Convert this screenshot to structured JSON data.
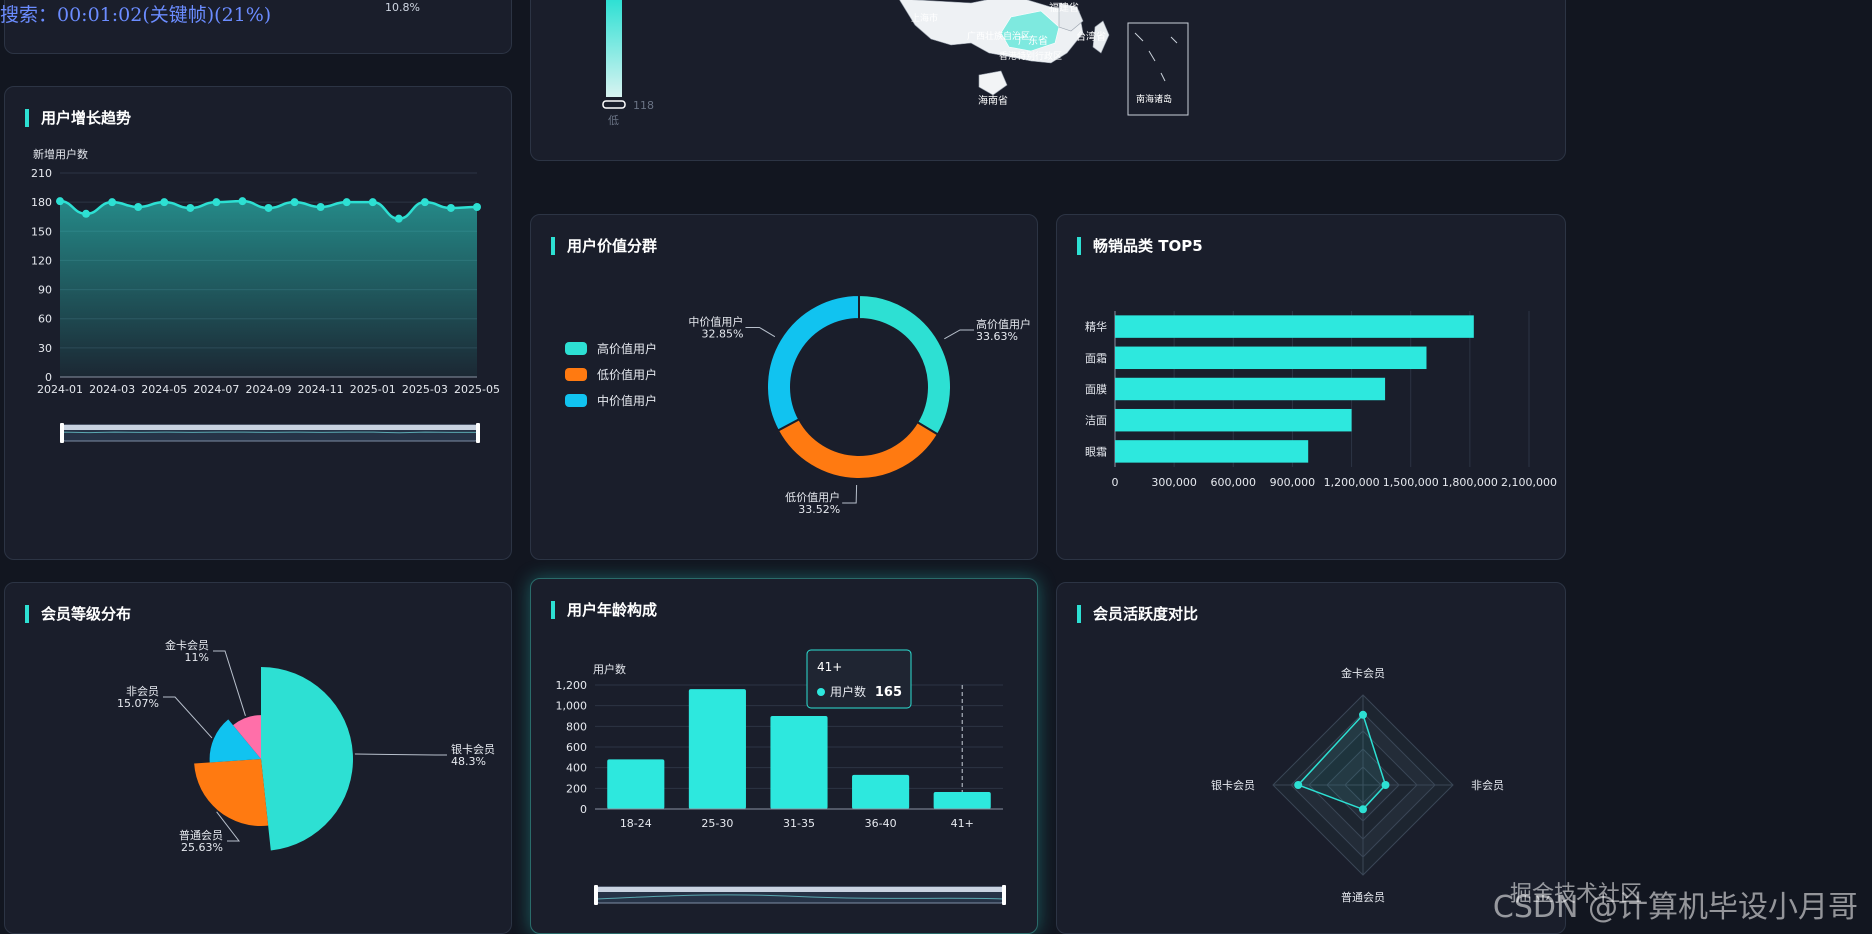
{
  "overlay": {
    "search_text": "搜索：00:01:02(关键帧)(21%)",
    "watermark": "CSDN @计算机毕设小月哥",
    "watermark_overlay": "掘金技术社区"
  },
  "top_left": {
    "fragment_value": "10.8%"
  },
  "map_panel": {
    "visual_min_label": "低",
    "visual_max_value": "118",
    "labels": [
      "福建省",
      "广东省",
      "台湾省",
      "海南省",
      "南海诸岛",
      "广西壮族自治区",
      "香港特别行政区",
      "上海市"
    ]
  },
  "growth": {
    "title": "用户增长趋势",
    "chart_data": {
      "type": "line",
      "ylabel": "新增用户数",
      "x": [
        "2024-01",
        "2024-02",
        "2024-03",
        "2024-04",
        "2024-05",
        "2024-06",
        "2024-07",
        "2024-08",
        "2024-09",
        "2024-10",
        "2024-11",
        "2024-12",
        "2025-01",
        "2025-02",
        "2025-03",
        "2025-04",
        "2025-05"
      ],
      "x_tick_labels": [
        "2024-01",
        "2024-03",
        "2024-05",
        "2024-07",
        "2024-09",
        "2024-11",
        "2025-01",
        "2025-03",
        "2025-05"
      ],
      "values": [
        181,
        168,
        180,
        175,
        180,
        174,
        180,
        181,
        174,
        180,
        175,
        180,
        180,
        163,
        180,
        174,
        175
      ],
      "ylim": [
        0,
        210
      ],
      "yticks": [
        0,
        30,
        60,
        90,
        120,
        150,
        180,
        210
      ],
      "color": "#2de0d3"
    }
  },
  "value_segment": {
    "title": "用户价值分群",
    "chart_data": {
      "type": "pie",
      "slices": [
        {
          "name": "高价值用户",
          "pct": "33.63%",
          "value": 33.63,
          "color": "#2de0d3"
        },
        {
          "name": "低价值用户",
          "pct": "33.52%",
          "value": 33.52,
          "color": "#ff7a11"
        },
        {
          "name": "中价值用户",
          "pct": "32.85%",
          "value": 32.85,
          "color": "#11c3f0"
        }
      ]
    }
  },
  "top5": {
    "title": "畅销品类 TOP5",
    "chart_data": {
      "type": "bar",
      "orientation": "horizontal",
      "categories": [
        "精华",
        "面霜",
        "面膜",
        "洁面",
        "眼霜"
      ],
      "values": [
        1820000,
        1580000,
        1370000,
        1200000,
        980000
      ],
      "xlim": [
        0,
        2100000
      ],
      "xticks": [
        "0",
        "300,000",
        "600,000",
        "900,000",
        "1,200,000",
        "1,500,000",
        "1,800,000",
        "2,100,000"
      ],
      "color": "#2de8de"
    }
  },
  "member_level": {
    "title": "会员等级分布",
    "chart_data": {
      "type": "pie",
      "roseType": "radius",
      "slices": [
        {
          "name": "银卡会员",
          "pct": "48.3%",
          "value": 48.3,
          "color": "#2de0d3"
        },
        {
          "name": "普通会员",
          "pct": "25.63%",
          "value": 25.63,
          "color": "#ff7a11"
        },
        {
          "name": "非会员",
          "pct": "15.07%",
          "value": 15.07,
          "color": "#11c3f0"
        },
        {
          "name": "金卡会员",
          "pct": "11%",
          "value": 11,
          "color": "#ff6fa9"
        }
      ]
    }
  },
  "age": {
    "title": "用户年龄构成",
    "chart_data": {
      "type": "bar",
      "ylabel": "用户数",
      "categories": [
        "18-24",
        "25-30",
        "31-35",
        "36-40",
        "41+"
      ],
      "values": [
        480,
        1160,
        900,
        330,
        165
      ],
      "ylim": [
        0,
        1200
      ],
      "yticks": [
        "0",
        "200",
        "400",
        "600",
        "800",
        "1,000",
        "1,200"
      ],
      "color": "#2de8de"
    },
    "tooltip": {
      "title": "41+",
      "series": "用户数",
      "value": "165"
    }
  },
  "activity": {
    "title": "会员活跃度对比",
    "chart_data": {
      "type": "radar",
      "indicators": [
        "金卡会员",
        "非会员",
        "普通会员",
        "银卡会员"
      ],
      "values": [
        0.78,
        0.25,
        0.27,
        0.72
      ],
      "color": "#2de0d3"
    }
  }
}
